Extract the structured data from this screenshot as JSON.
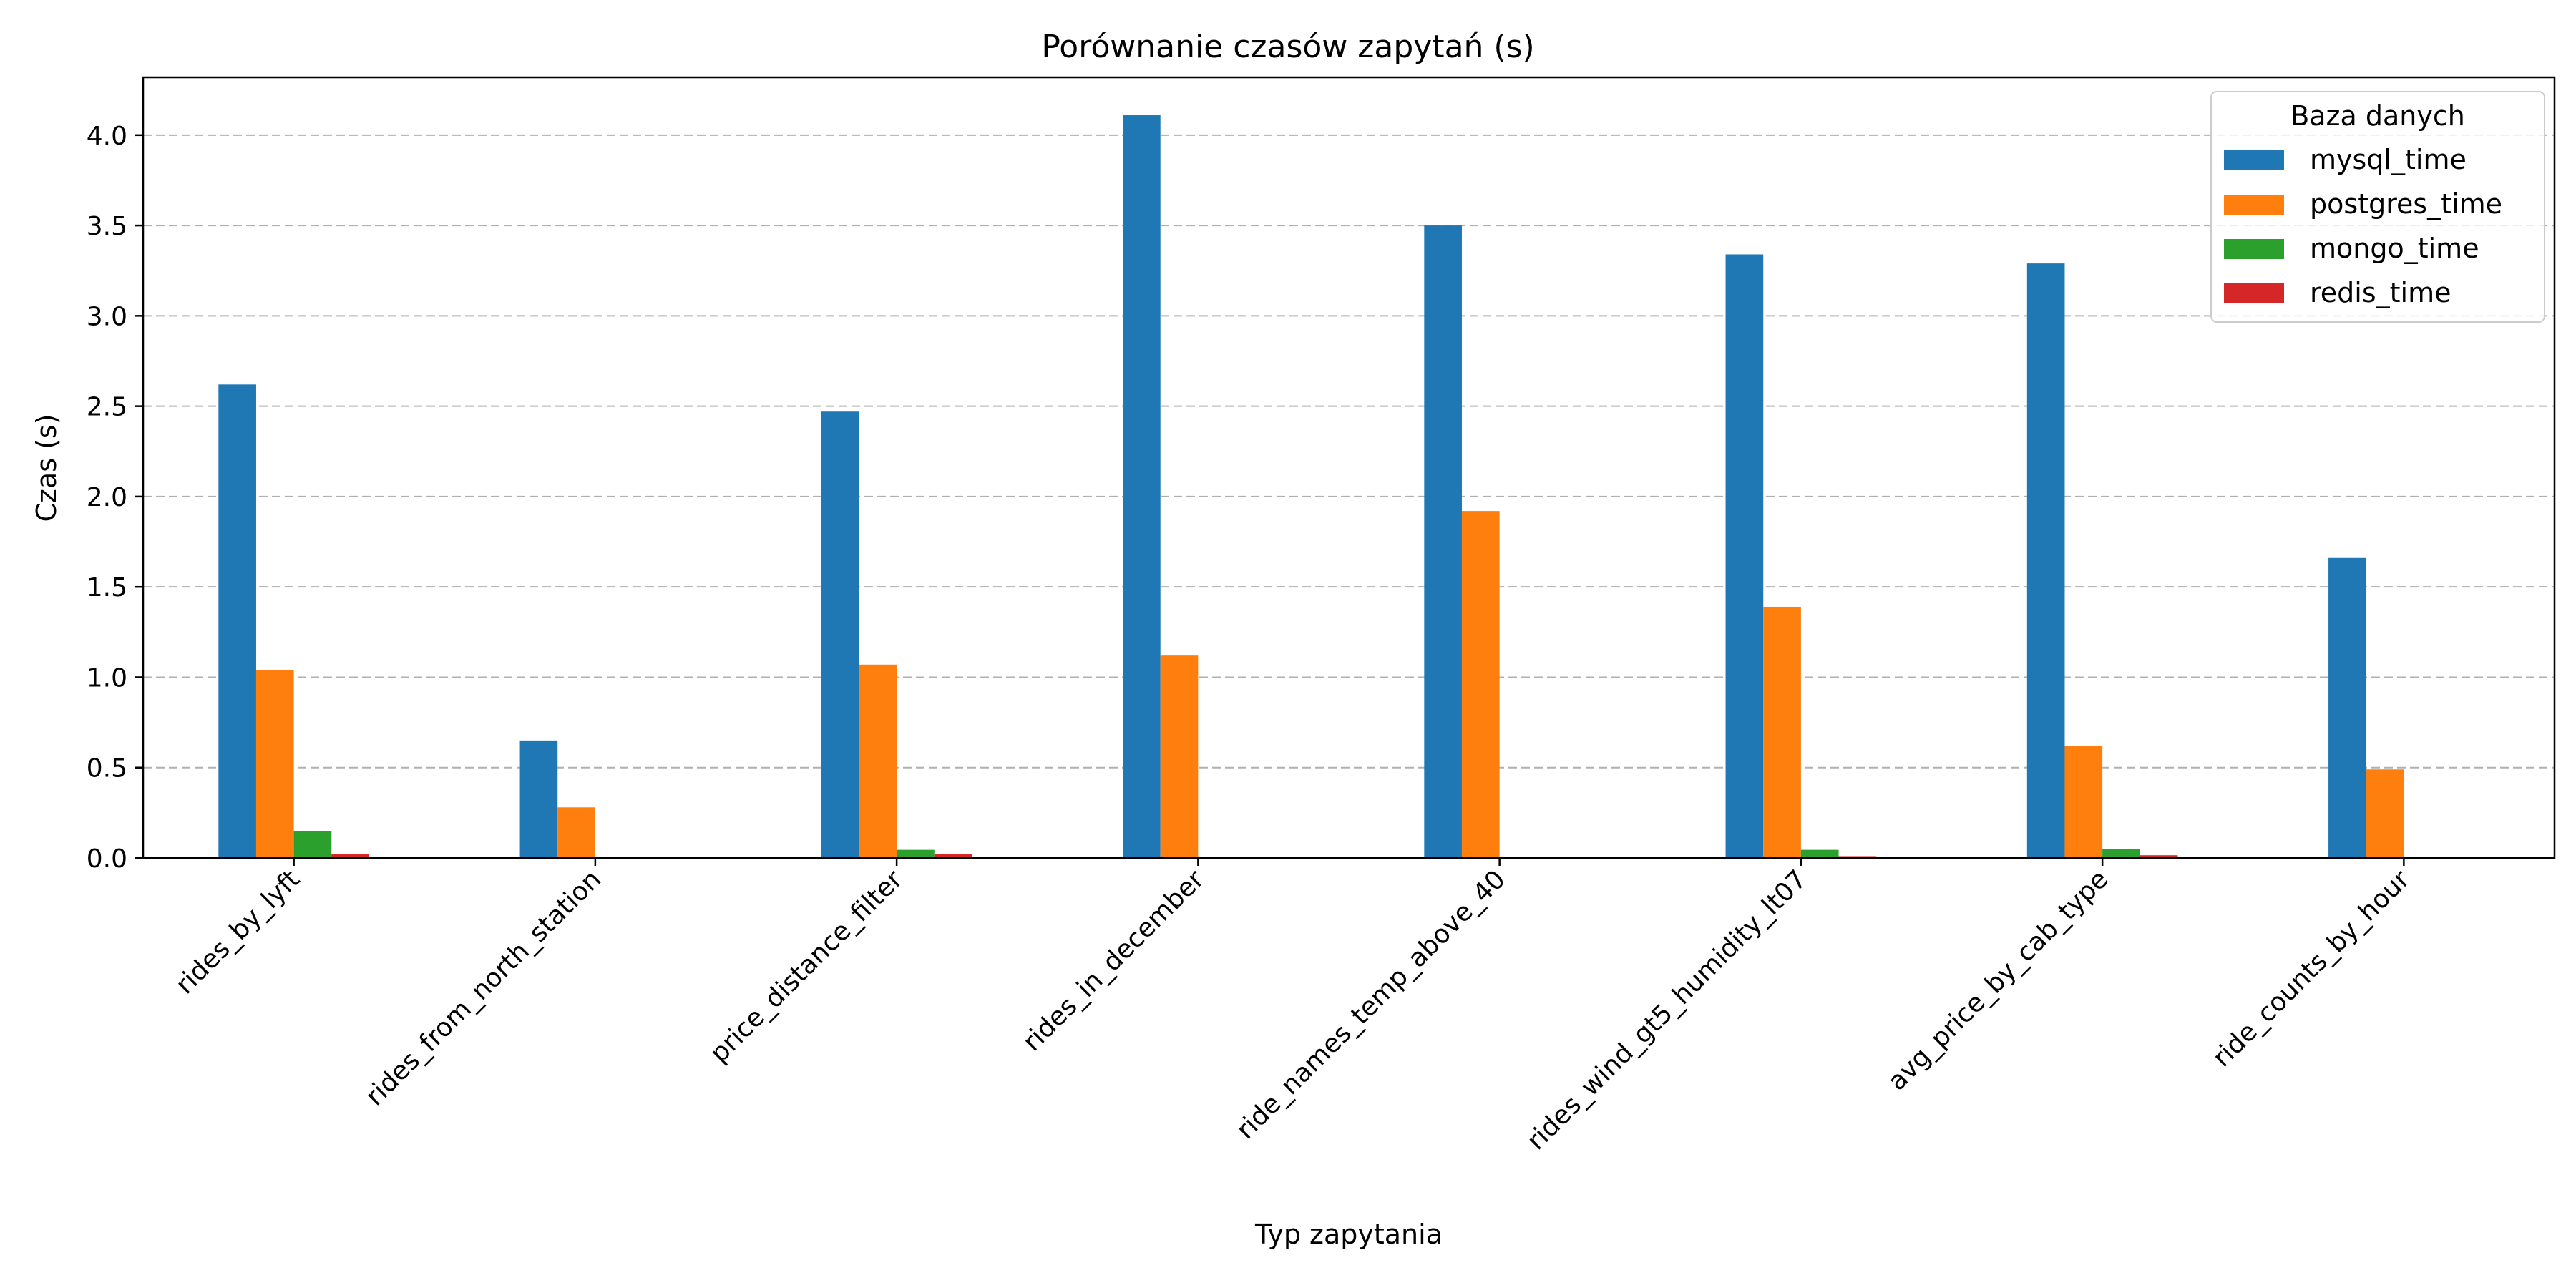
{
  "chart_data": {
    "type": "bar",
    "title": "Porównanie czasów zapytań (s)",
    "xlabel": "Typ zapytania",
    "ylabel": "Czas (s)",
    "ylim": [
      0,
      4.32
    ],
    "yticks": [
      0.0,
      0.5,
      1.0,
      1.5,
      2.0,
      2.5,
      3.0,
      3.5,
      4.0
    ],
    "ytick_labels": [
      "0.0",
      "0.5",
      "1.0",
      "1.5",
      "2.0",
      "2.5",
      "3.0",
      "3.5",
      "4.0"
    ],
    "grid": "horizontal dashed",
    "legend": {
      "title": "Baza danych",
      "placement": "top-right"
    },
    "categories": [
      "rides_by_lyft",
      "rides_from_north_station",
      "price_distance_filter",
      "rides_in_december",
      "ride_names_temp_above_40",
      "rides_wind_gt5_humidity_lt07",
      "avg_price_by_cab_type",
      "ride_counts_by_hour"
    ],
    "series": [
      {
        "name": "mysql_time",
        "color": "#1f77b4",
        "values": [
          2.62,
          0.65,
          2.47,
          4.11,
          3.5,
          3.34,
          3.29,
          1.66
        ]
      },
      {
        "name": "postgres_time",
        "color": "#ff7f0e",
        "values": [
          1.04,
          0.28,
          1.07,
          1.12,
          1.92,
          1.39,
          0.62,
          0.49
        ]
      },
      {
        "name": "mongo_time",
        "color": "#2ca02c",
        "values": [
          0.15,
          0.002,
          0.045,
          0.002,
          0.002,
          0.045,
          0.05,
          0.005
        ]
      },
      {
        "name": "redis_time",
        "color": "#d62728",
        "values": [
          0.02,
          0.001,
          0.02,
          0.001,
          0.001,
          0.01,
          0.015,
          0.002
        ]
      }
    ]
  }
}
